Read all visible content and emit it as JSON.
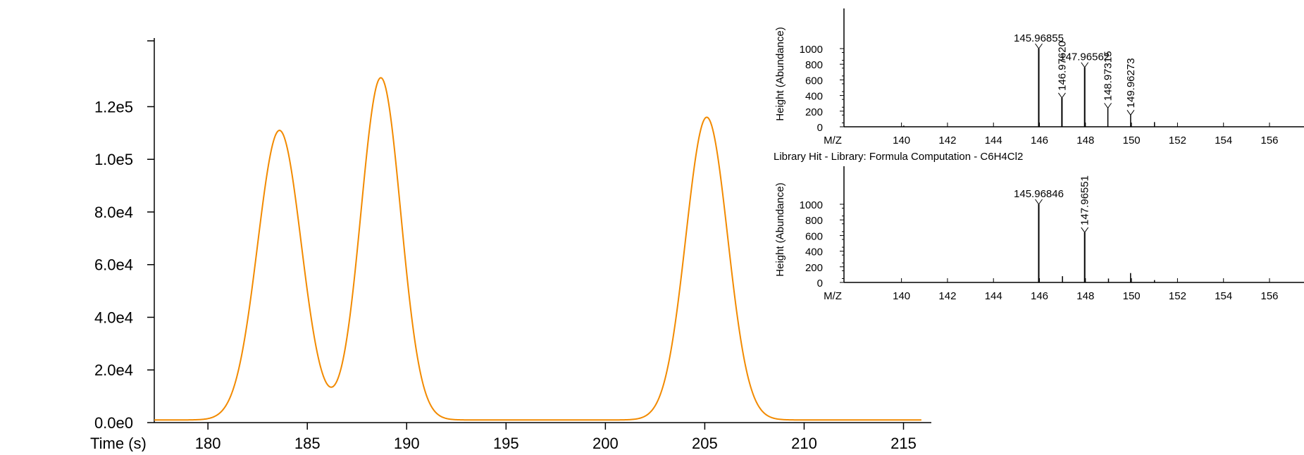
{
  "chart_data": [
    {
      "type": "line",
      "xlabel": "Time (s)",
      "ylabel": "",
      "xlim": [
        177.3,
        216.4
      ],
      "ylim": [
        0,
        145000
      ],
      "x_ticks": [
        180,
        185,
        190,
        195,
        200,
        205,
        210,
        215
      ],
      "y_ticks": [
        0,
        20000,
        40000,
        60000,
        80000,
        100000,
        120000
      ],
      "y_tick_labels": [
        "0.0e0",
        "2.0e4",
        "4.0e4",
        "6.0e4",
        "8.0e4",
        "1.0e5",
        "1.2e5"
      ],
      "grid": false,
      "series": [
        {
          "color": "#f28a00",
          "peaks": [
            {
              "center": 183.6,
              "height": 110000,
              "sigma": 1.1
            },
            {
              "center": 188.7,
              "height": 130000,
              "sigma": 1.0
            },
            {
              "center": 205.1,
              "height": 115000,
              "sigma": 1.05
            }
          ],
          "baseline": 1000,
          "x_range": [
            177.3,
            215.9
          ]
        }
      ]
    },
    {
      "type": "bar",
      "title": "",
      "xlabel": "M/Z",
      "ylabel": "Height (Abundance)",
      "xlim": [
        137.5,
        157.5
      ],
      "ylim": [
        0,
        1500
      ],
      "x_ticks": [
        140,
        142,
        144,
        146,
        148,
        150,
        152,
        154,
        156
      ],
      "y_ticks": [
        0,
        200,
        400,
        600,
        800,
        1000
      ],
      "peaks": [
        {
          "mz": 140.1,
          "value": 15
        },
        {
          "mz": 145.96855,
          "value": 1000,
          "label": "145.96855",
          "orient": "h"
        },
        {
          "mz": 146.9762,
          "value": 370,
          "label": "146.97620",
          "orient": "v"
        },
        {
          "mz": 147.96562,
          "value": 760,
          "label": "147.96562",
          "orient": "h"
        },
        {
          "mz": 148.97315,
          "value": 240,
          "label": "148.97315",
          "orient": "v"
        },
        {
          "mz": 149.96273,
          "value": 150,
          "label": "149.96273",
          "orient": "v"
        },
        {
          "mz": 151.0,
          "value": 60
        }
      ]
    },
    {
      "type": "bar",
      "title": "Library Hit - Library: Formula Computation - C6H4Cl2",
      "xlabel": "M/Z",
      "ylabel": "Height (Abundance)",
      "xlim": [
        137.5,
        157.5
      ],
      "ylim": [
        0,
        1500
      ],
      "x_ticks": [
        140,
        142,
        144,
        146,
        148,
        150,
        152,
        154,
        156
      ],
      "y_ticks": [
        0,
        200,
        400,
        600,
        800,
        1000
      ],
      "peaks": [
        {
          "mz": 145.96846,
          "value": 1000,
          "label": "145.96846",
          "orient": "h"
        },
        {
          "mz": 147.0,
          "value": 80
        },
        {
          "mz": 147.96551,
          "value": 640,
          "label": "147.96551",
          "orient": "v"
        },
        {
          "mz": 149.0,
          "value": 50
        },
        {
          "mz": 149.96,
          "value": 120
        },
        {
          "mz": 151.0,
          "value": 30
        }
      ]
    }
  ]
}
